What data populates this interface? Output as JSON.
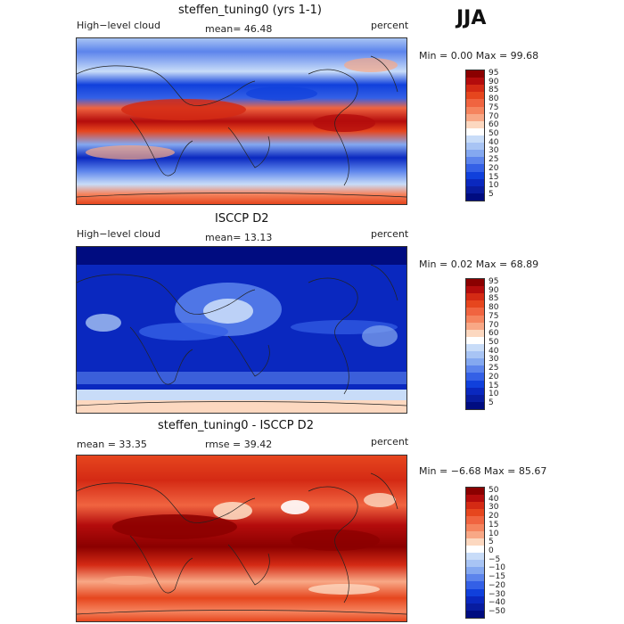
{
  "season": "JJA",
  "panels": [
    {
      "title": "steffen_tuning0 (yrs 1-1)",
      "left_label": "High−level cloud",
      "mean_text": "mean=   46.48",
      "rmse_text": "",
      "units": "percent",
      "minmax": "Min =    0.00 Max =   99.68"
    },
    {
      "title": "ISCCP D2",
      "left_label": "High−level cloud",
      "mean_text": "mean=   13.13",
      "rmse_text": "",
      "units": "percent",
      "minmax": "Min =    0.02 Max =   68.89"
    },
    {
      "title": "steffen_tuning0 - ISCCP D2",
      "left_label": "",
      "mean_text": "mean =   33.35",
      "rmse_text": "rmse =   39.42",
      "units": "percent",
      "minmax": "Min =  −6.68  Max =   85.67"
    }
  ],
  "colorbar_abs": {
    "labels": [
      "95",
      "90",
      "85",
      "80",
      "75",
      "70",
      "60",
      "50",
      "40",
      "30",
      "25",
      "20",
      "15",
      "10",
      "5"
    ],
    "colors": [
      "#8b0000",
      "#b40c0c",
      "#d42a14",
      "#e6461e",
      "#f06440",
      "#f5845e",
      "#f8a886",
      "#fcd8c0",
      "#ffffff",
      "#c8dcf8",
      "#a8c4f4",
      "#84a8f0",
      "#5c84ec",
      "#3460e6",
      "#1040dc",
      "#0a28bf",
      "#081ca0",
      "#000c80"
    ]
  },
  "colorbar_diff": {
    "labels": [
      "50",
      "40",
      "30",
      "20",
      "15",
      "10",
      "5",
      "0",
      "−5",
      "−10",
      "−15",
      "−20",
      "−30",
      "−40",
      "−50"
    ],
    "colors": [
      "#8b0000",
      "#b40c0c",
      "#d42a14",
      "#e6461e",
      "#f06440",
      "#f5845e",
      "#f8a886",
      "#fcd8c0",
      "#ffffff",
      "#c8dcf8",
      "#a8c4f4",
      "#84a8f0",
      "#5c84ec",
      "#3460e6",
      "#1040dc",
      "#0a28bf",
      "#081ca0",
      "#000c80"
    ]
  }
}
